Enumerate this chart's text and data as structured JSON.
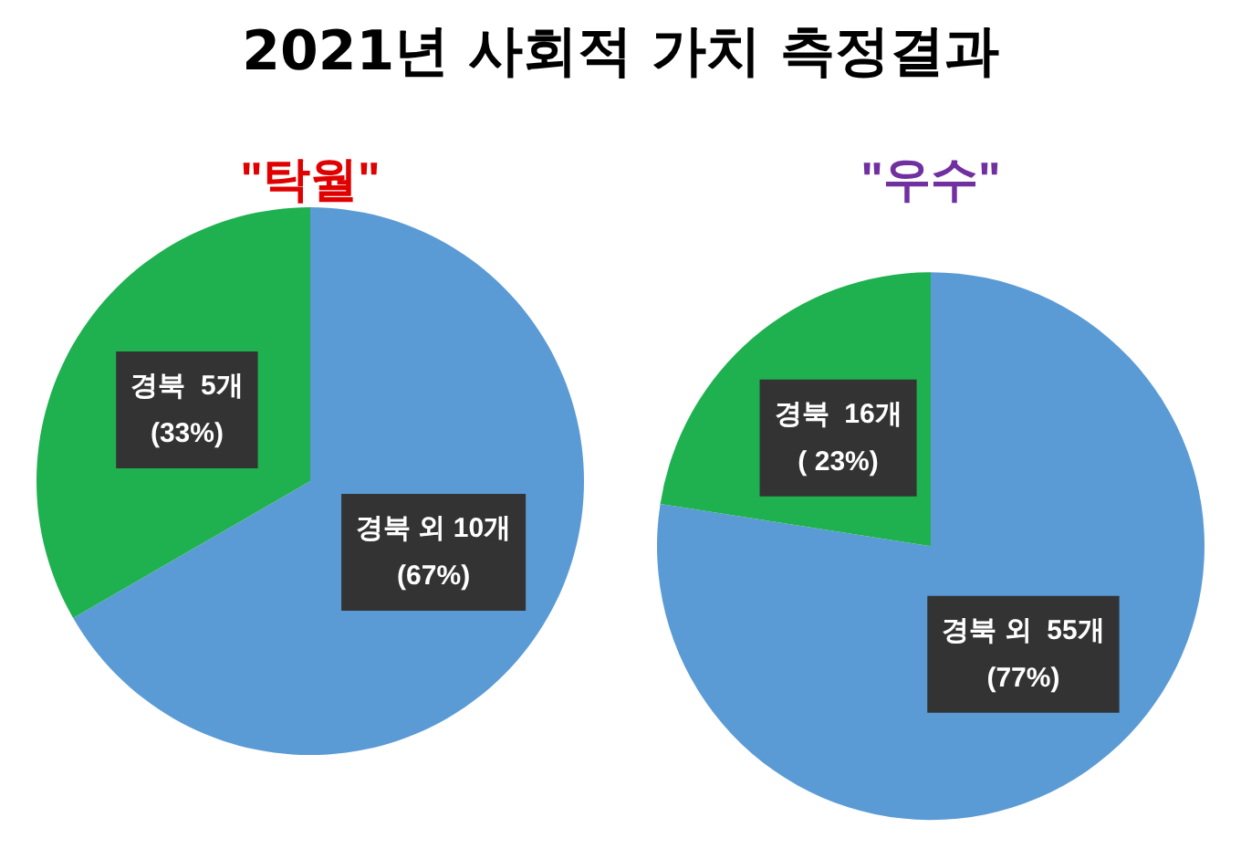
{
  "chart_data": [
    {
      "type": "pie",
      "title": "2021년 사회적 가치 측정결과",
      "subtitle": "\"탁월\"",
      "categories": [
        "경북 외",
        "경북"
      ],
      "values": [
        10,
        5
      ],
      "colors": [
        "#5b9bd5",
        "#1fb050"
      ],
      "value_labels": [
        "10개\n(67%)",
        " 5개\n(33%)"
      ],
      "legend": false
    },
    {
      "type": "pie",
      "subtitle": "\"우수\"",
      "categories": [
        "경북 외",
        "경북"
      ],
      "values": [
        55,
        16
      ],
      "colors": [
        "#5b9bd5",
        "#1fb050"
      ],
      "value_labels": [
        " 55개\n(77%)",
        " 16개\n( 23%)"
      ],
      "legend": false
    }
  ]
}
